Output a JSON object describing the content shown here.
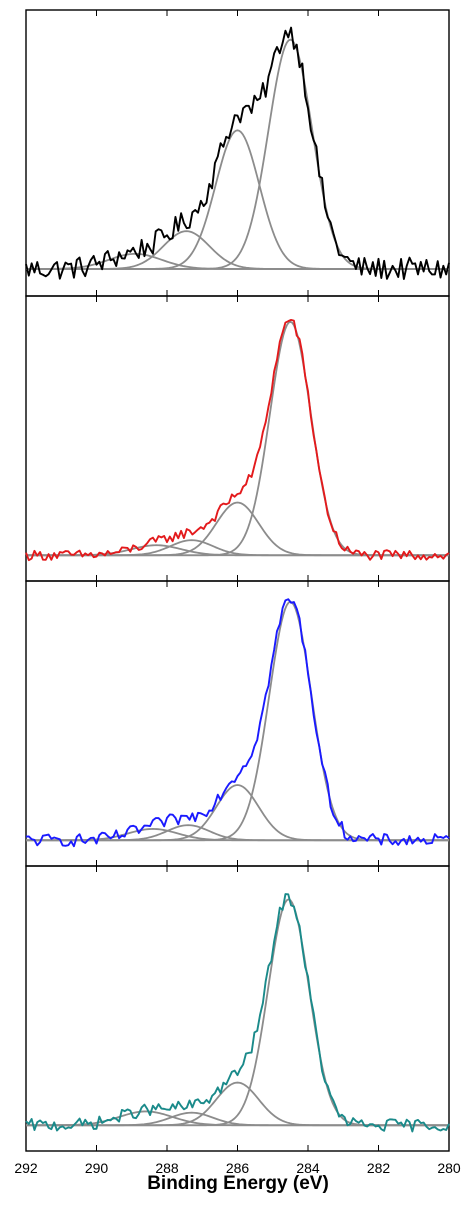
{
  "chart_data": {
    "type": "line",
    "xlabel": "Binding Energy (eV)",
    "ylabel": "",
    "x_ticks": [
      292,
      290,
      288,
      286,
      284,
      282,
      280
    ],
    "xlim": [
      292,
      280
    ],
    "x_reversed": true,
    "grid": false,
    "legend": "none",
    "panels": [
      {
        "name": "panel-1",
        "data_color": "#000000",
        "baseline": 0.02,
        "noise": 0.045,
        "fit_peaks": [
          {
            "center": 284.5,
            "height": 0.91,
            "sigma": 0.62
          },
          {
            "center": 286.0,
            "height": 0.55,
            "sigma": 0.62
          },
          {
            "center": 287.45,
            "height": 0.15,
            "sigma": 0.65
          },
          {
            "center": 288.9,
            "height": 0.06,
            "sigma": 0.75
          }
        ]
      },
      {
        "name": "panel-2",
        "data_color": "#e31a1c",
        "baseline": 0.015,
        "noise": 0.02,
        "fit_peaks": [
          {
            "center": 284.5,
            "height": 0.93,
            "sigma": 0.58
          },
          {
            "center": 286.0,
            "height": 0.21,
            "sigma": 0.6
          },
          {
            "center": 287.3,
            "height": 0.06,
            "sigma": 0.6
          },
          {
            "center": 288.3,
            "height": 0.04,
            "sigma": 0.7
          }
        ]
      },
      {
        "name": "panel-3",
        "data_color": "#1a1aff",
        "baseline": 0.015,
        "noise": 0.025,
        "fit_peaks": [
          {
            "center": 284.5,
            "height": 0.95,
            "sigma": 0.6
          },
          {
            "center": 286.0,
            "height": 0.22,
            "sigma": 0.6
          },
          {
            "center": 287.4,
            "height": 0.06,
            "sigma": 0.6
          },
          {
            "center": 288.4,
            "height": 0.045,
            "sigma": 0.7
          }
        ]
      },
      {
        "name": "panel-4",
        "data_color": "#1a8a8a",
        "baseline": 0.015,
        "noise": 0.025,
        "fit_peaks": [
          {
            "center": 284.55,
            "height": 0.9,
            "sigma": 0.58
          },
          {
            "center": 286.0,
            "height": 0.17,
            "sigma": 0.6
          },
          {
            "center": 287.3,
            "height": 0.05,
            "sigma": 0.6
          },
          {
            "center": 288.6,
            "height": 0.055,
            "sigma": 0.75
          }
        ]
      }
    ]
  },
  "colors": {
    "fit_line": "#8c8c8c",
    "axis": "#000000"
  }
}
